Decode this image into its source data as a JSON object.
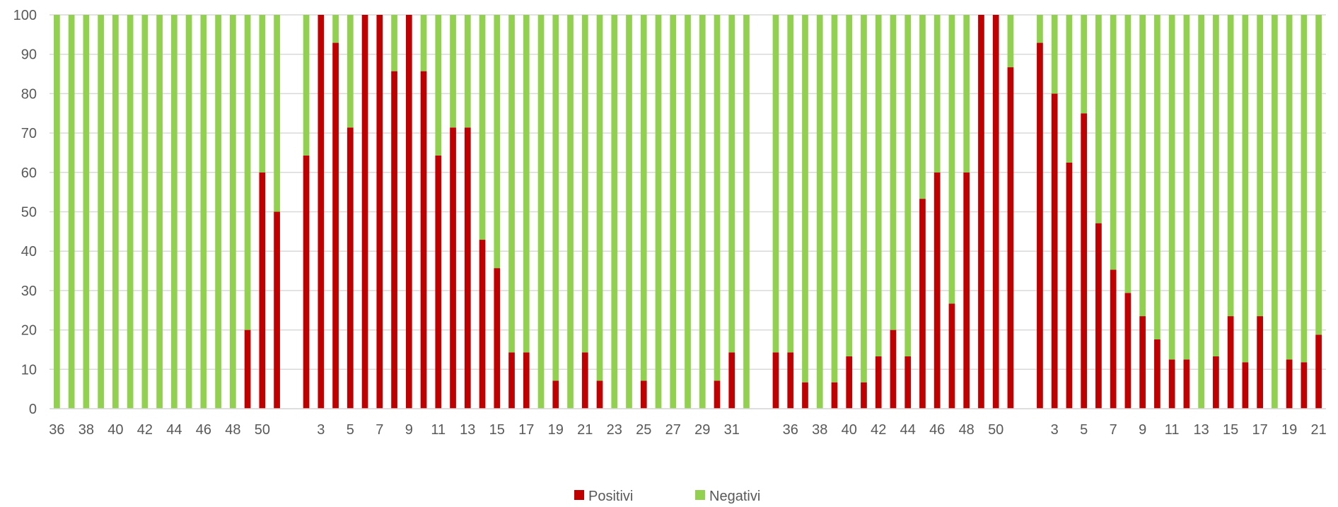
{
  "chart_data": {
    "type": "bar",
    "stacked": true,
    "title": "",
    "xlabel": "",
    "ylabel": "",
    "ylim": [
      0,
      100
    ],
    "yticks": [
      0,
      10,
      20,
      30,
      40,
      50,
      60,
      70,
      80,
      90,
      100
    ],
    "grid": true,
    "legend_position": "bottom",
    "colors": {
      "Positivi": "#c00000",
      "Negativi": "#92d050",
      "grid": "#d9d9d9",
      "text": "#595959"
    },
    "categories": [
      "36",
      "37",
      "38",
      "39",
      "40",
      "41",
      "42",
      "43",
      "44",
      "45",
      "46",
      "47",
      "48",
      "49",
      "50",
      "51",
      "",
      "2",
      "3",
      "4",
      "5",
      "6",
      "7",
      "8",
      "9",
      "10",
      "11",
      "12",
      "13",
      "14",
      "15",
      "16",
      "17",
      "18",
      "19",
      "20",
      "21",
      "22",
      "23",
      "24",
      "25",
      "26",
      "27",
      "28",
      "29",
      "30",
      "31",
      "32",
      "",
      "35",
      "36",
      "37",
      "38",
      "39",
      "40",
      "41",
      "42",
      "43",
      "44",
      "45",
      "46",
      "47",
      "48",
      "49",
      "50",
      "51",
      "",
      "2",
      "3",
      "4",
      "5",
      "6",
      "7",
      "8",
      "9",
      "10",
      "11",
      "12",
      "13",
      "14",
      "15",
      "16",
      "17",
      "18",
      "19",
      "20",
      "21"
    ],
    "tick_labels": [
      "36",
      "",
      "38",
      "",
      "40",
      "",
      "42",
      "",
      "44",
      "",
      "46",
      "",
      "48",
      "",
      "50",
      "",
      "",
      "",
      "3",
      "",
      "5",
      "",
      "7",
      "",
      "9",
      "",
      "11",
      "",
      "13",
      "",
      "15",
      "",
      "17",
      "",
      "19",
      "",
      "21",
      "",
      "23",
      "",
      "25",
      "",
      "27",
      "",
      "29",
      "",
      "31",
      "",
      "",
      "",
      "36",
      "",
      "38",
      "",
      "40",
      "",
      "42",
      "",
      "44",
      "",
      "46",
      "",
      "48",
      "",
      "50",
      "",
      "",
      "",
      "3",
      "",
      "5",
      "",
      "7",
      "",
      "9",
      "",
      "11",
      "",
      "13",
      "",
      "15",
      "",
      "17",
      "",
      "19",
      "",
      "21"
    ],
    "series": [
      {
        "name": "Positivi",
        "values": [
          0,
          0,
          0,
          0,
          0,
          0,
          0,
          0,
          0,
          0,
          0,
          0,
          0,
          20,
          60,
          50,
          null,
          64.3,
          100,
          92.9,
          71.4,
          100,
          100,
          85.7,
          100,
          85.7,
          64.3,
          71.4,
          71.4,
          42.9,
          35.7,
          14.3,
          14.3,
          0,
          7.1,
          0,
          14.3,
          7.1,
          0,
          0,
          7.1,
          0,
          0,
          0,
          0,
          7.1,
          14.3,
          0,
          null,
          14.3,
          14.3,
          6.7,
          0,
          6.7,
          13.3,
          6.7,
          13.3,
          20,
          13.3,
          53.3,
          60,
          26.7,
          60,
          100,
          100,
          86.7,
          null,
          92.9,
          80,
          62.5,
          75,
          47.1,
          35.3,
          29.4,
          23.5,
          17.6,
          12.5,
          12.5,
          0,
          13.3,
          23.5,
          11.8,
          23.5,
          0,
          12.5,
          11.8,
          18.8
        ]
      },
      {
        "name": "Negativi",
        "values": [
          100,
          100,
          100,
          100,
          100,
          100,
          100,
          100,
          100,
          100,
          100,
          100,
          100,
          80,
          40,
          50,
          null,
          35.7,
          0,
          7.1,
          28.6,
          0,
          0,
          14.3,
          0,
          14.3,
          35.7,
          28.6,
          28.6,
          57.1,
          64.3,
          85.7,
          85.7,
          100,
          92.9,
          100,
          85.7,
          92.9,
          100,
          100,
          92.9,
          100,
          100,
          100,
          100,
          92.9,
          85.7,
          100,
          null,
          85.7,
          85.7,
          93.3,
          100,
          93.3,
          86.7,
          93.3,
          86.7,
          80,
          86.7,
          46.7,
          40,
          73.3,
          40,
          0,
          0,
          13.3,
          null,
          7.1,
          20,
          37.5,
          25,
          52.9,
          64.7,
          70.6,
          76.5,
          82.4,
          87.5,
          87.5,
          100,
          86.7,
          76.5,
          88.2,
          76.5,
          100,
          87.5,
          88.2,
          81.2
        ]
      }
    ]
  }
}
